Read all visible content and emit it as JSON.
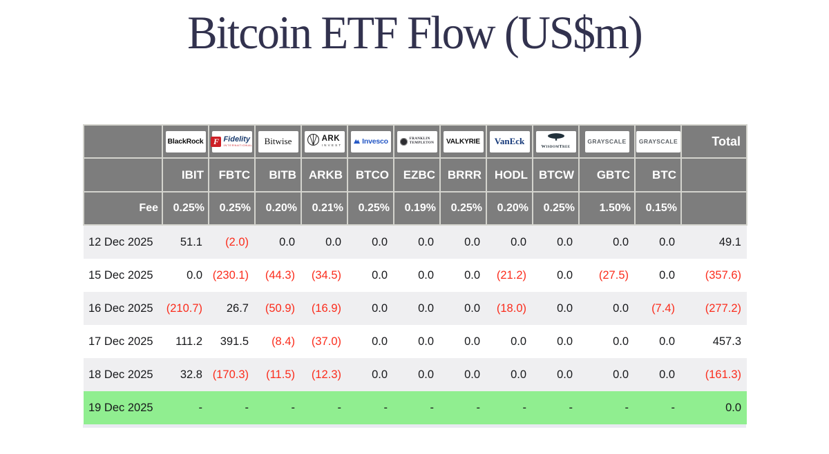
{
  "title": "Bitcoin ETF Flow (US$m)",
  "colors": {
    "title_color": "#32324e",
    "header_bg": "#7d7d7d",
    "row_alt": "#efeff1",
    "highlight_green": "#90ee90",
    "negative_red": "#fb2c1c"
  },
  "chart_data": {
    "type": "table",
    "title": "Bitcoin ETF Flow (US$m)",
    "fee_label": "Fee",
    "total_label": "Total",
    "columns": [
      {
        "issuer": "BlackRock",
        "logo": "blackrock",
        "logo_text": "BlackRock",
        "ticker": "IBIT",
        "fee": "0.25%"
      },
      {
        "issuer": "Fidelity",
        "logo": "fidelity",
        "logo_text": "Fidelity",
        "logo_icon": "F",
        "logo_sub": "INTERNATIONAL",
        "ticker": "FBTC",
        "fee": "0.25%"
      },
      {
        "issuer": "Bitwise",
        "logo": "bitwise",
        "logo_text": "Bitwise",
        "ticker": "BITB",
        "fee": "0.20%"
      },
      {
        "issuer": "ARK Invest",
        "logo": "ark",
        "logo_text": "ARK",
        "logo_sub": "INVEST",
        "ticker": "ARKB",
        "fee": "0.21%"
      },
      {
        "issuer": "Invesco",
        "logo": "invesco",
        "logo_text": "Invesco",
        "ticker": "BTCO",
        "fee": "0.25%"
      },
      {
        "issuer": "Franklin Templeton",
        "logo": "franklin",
        "logo_lines": [
          "FRANKLIN",
          "TEMPLETON"
        ],
        "ticker": "EZBC",
        "fee": "0.19%"
      },
      {
        "issuer": "Valkyrie",
        "logo": "valkyrie",
        "logo_text": "VALKYRIE",
        "ticker": "BRRR",
        "fee": "0.25%"
      },
      {
        "issuer": "VanEck",
        "logo": "vaneck",
        "logo_text": "VanEck",
        "ticker": "HODL",
        "fee": "0.20%"
      },
      {
        "issuer": "WisdomTree",
        "logo": "wisdomtree",
        "logo_text": "WisdomTree",
        "ticker": "BTCW",
        "fee": "0.25%"
      },
      {
        "issuer": "Grayscale",
        "logo": "grayscale",
        "logo_text": "GRAYSCALE",
        "ticker": "GBTC",
        "fee": "1.50%"
      },
      {
        "issuer": "Grayscale",
        "logo": "grayscale",
        "logo_text": "GRAYSCALE",
        "ticker": "BTC",
        "fee": "0.15%"
      }
    ],
    "rows": [
      {
        "date": "12 Dec 2025",
        "values": [
          "51.1",
          "(2.0)",
          "0.0",
          "0.0",
          "0.0",
          "0.0",
          "0.0",
          "0.0",
          "0.0",
          "0.0",
          "0.0"
        ],
        "total": "49.1",
        "highlight": false
      },
      {
        "date": "15 Dec 2025",
        "values": [
          "0.0",
          "(230.1)",
          "(44.3)",
          "(34.5)",
          "0.0",
          "0.0",
          "0.0",
          "(21.2)",
          "0.0",
          "(27.5)",
          "0.0"
        ],
        "total": "(357.6)",
        "highlight": false
      },
      {
        "date": "16 Dec 2025",
        "values": [
          "(210.7)",
          "26.7",
          "(50.9)",
          "(16.9)",
          "0.0",
          "0.0",
          "0.0",
          "(18.0)",
          "0.0",
          "0.0",
          "(7.4)"
        ],
        "total": "(277.2)",
        "highlight": false
      },
      {
        "date": "17 Dec 2025",
        "values": [
          "111.2",
          "391.5",
          "(8.4)",
          "(37.0)",
          "0.0",
          "0.0",
          "0.0",
          "0.0",
          "0.0",
          "0.0",
          "0.0"
        ],
        "total": "457.3",
        "highlight": false
      },
      {
        "date": "18 Dec 2025",
        "values": [
          "32.8",
          "(170.3)",
          "(11.5)",
          "(12.3)",
          "0.0",
          "0.0",
          "0.0",
          "0.0",
          "0.0",
          "0.0",
          "0.0"
        ],
        "total": "(161.3)",
        "highlight": false
      },
      {
        "date": "19 Dec 2025",
        "values": [
          "-",
          "-",
          "-",
          "-",
          "-",
          "-",
          "-",
          "-",
          "-",
          "-",
          "-"
        ],
        "total": "0.0",
        "highlight": true
      }
    ]
  }
}
